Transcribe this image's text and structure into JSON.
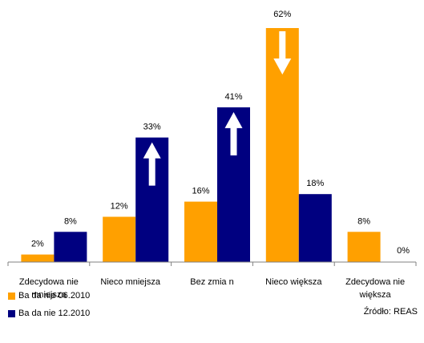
{
  "chart_data": {
    "type": "bar",
    "categories": [
      "Zdecydowanie mniejsza",
      "Nieco mniejsza",
      "Bez zmian",
      "Nieco większa",
      "Zdecydowanie większa"
    ],
    "category_labels": [
      [
        "Zdecydowa nie",
        "mniejsza"
      ],
      [
        "Nieco mniejsza"
      ],
      [
        "Bez zmia n"
      ],
      [
        "Nieco większa"
      ],
      [
        "Zdecydowa nie",
        "większa"
      ]
    ],
    "series": [
      {
        "name": "Ba da nie 06.2010",
        "values": [
          2,
          12,
          16,
          62,
          8
        ],
        "color": "#FFA000"
      },
      {
        "name": "Ba da nie 12.2010",
        "values": [
          8,
          33,
          41,
          18,
          0
        ],
        "color": "#000080"
      }
    ],
    "value_suffix": "%",
    "ylim": [
      0,
      62
    ],
    "grid": false,
    "legend_position": "bottom-left",
    "arrows": [
      {
        "category_index": 1,
        "series_index": 1,
        "direction": "up",
        "color": "#ffffff"
      },
      {
        "category_index": 2,
        "series_index": 1,
        "direction": "up",
        "color": "#ffffff"
      },
      {
        "category_index": 3,
        "series_index": 0,
        "direction": "down",
        "color": "#ffffff"
      }
    ]
  },
  "source": "Źródło: REAS"
}
